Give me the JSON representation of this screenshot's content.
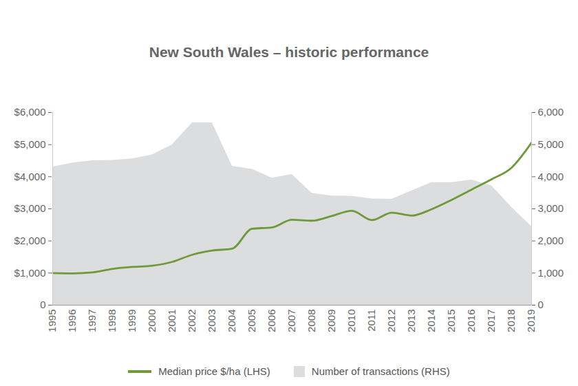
{
  "chart_data": {
    "type": "line",
    "title": "New South Wales – historic performance",
    "categories": [
      "1995",
      "1996",
      "1997",
      "1998",
      "1999",
      "2000",
      "2001",
      "2002",
      "2003",
      "2004",
      "2005",
      "2006",
      "2007",
      "2008",
      "2009",
      "2010",
      "2011",
      "2012",
      "2013",
      "2014",
      "2015",
      "2016",
      "2017",
      "2018",
      "2019"
    ],
    "series": [
      {
        "name": "Median price $/ha (LHS)",
        "type": "line",
        "color": "#6e9a3a",
        "values": [
          1000,
          990,
          1020,
          1130,
          1190,
          1230,
          1350,
          1570,
          1700,
          1760,
          2380,
          2420,
          2660,
          2630,
          2780,
          2940,
          2650,
          2880,
          2790,
          2990,
          3280,
          3600,
          3920,
          4280,
          5060
        ]
      },
      {
        "name": "Number of transactions (RHS)",
        "type": "area",
        "color": "#dcdddf",
        "axis": "y2",
        "values": [
          4300,
          4430,
          4500,
          4510,
          4560,
          4680,
          5000,
          5680,
          5680,
          4330,
          4230,
          3960,
          4070,
          3480,
          3400,
          3390,
          3310,
          3300,
          3560,
          3820,
          3820,
          3900,
          3720,
          3050,
          2450
        ]
      }
    ],
    "ylim": [
      0,
      6000
    ],
    "yticks": [
      0,
      {
        "value": 1000,
        "label": "$1,000"
      },
      {
        "value": 2000,
        "label": "$2,000"
      },
      {
        "value": 3000,
        "label": "$3,000"
      },
      {
        "value": 4000,
        "label": "$4,000"
      },
      {
        "value": 5000,
        "label": "$5,000"
      },
      {
        "value": 6000,
        "label": "$6,000"
      }
    ],
    "y2lim": [
      0,
      6000
    ],
    "y2ticks": [
      0,
      {
        "value": 1000,
        "label": "1,000"
      },
      {
        "value": 2000,
        "label": "2,000"
      },
      {
        "value": 3000,
        "label": "3,000"
      },
      {
        "value": 4000,
        "label": "4,000"
      },
      {
        "value": 5000,
        "label": "5,000"
      },
      {
        "value": 6000,
        "label": "6,000"
      }
    ],
    "grid": false,
    "legend": "bottom"
  }
}
